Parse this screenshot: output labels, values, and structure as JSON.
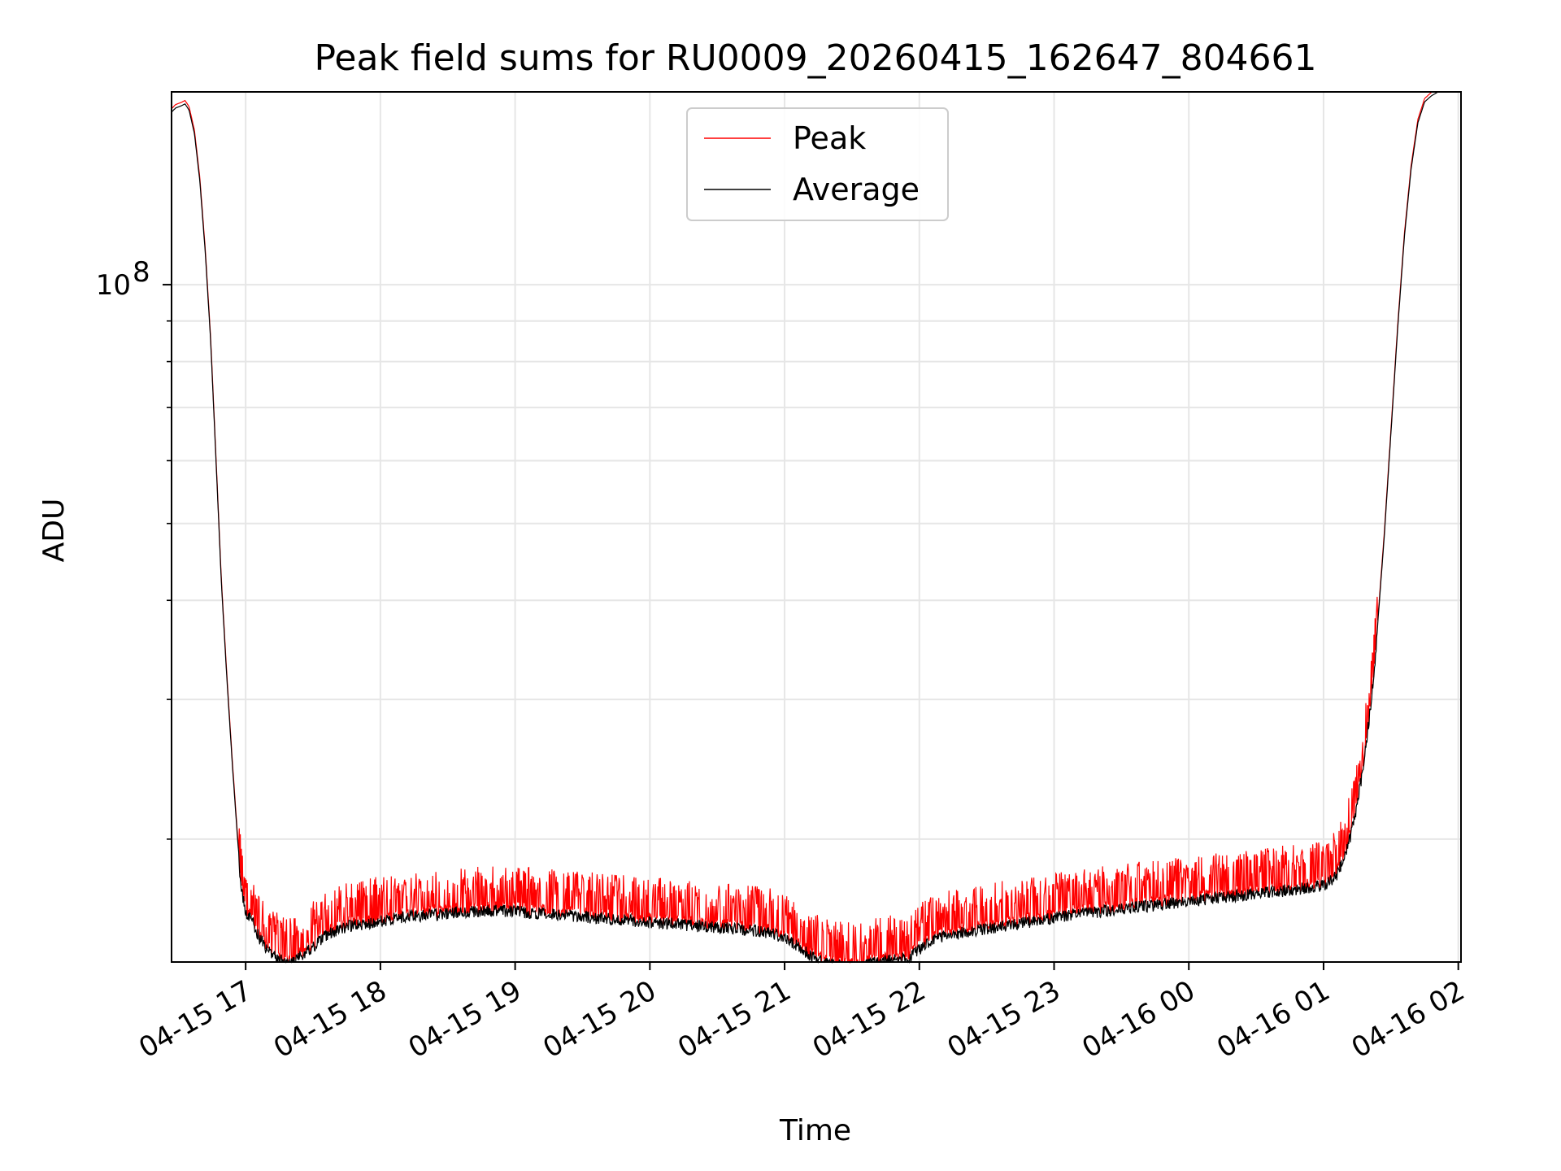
{
  "chart_data": {
    "type": "line",
    "title": "Peak field sums for RU0009_20260415_162647_804661",
    "xlabel": "Time",
    "ylabel": "ADU",
    "yscale": "log",
    "ylim": [
      14000000,
      175000000
    ],
    "xlim_hours": [
      16.45,
      26.02
    ],
    "x_ticks": [
      {
        "hour": 17,
        "label": "04-15 17"
      },
      {
        "hour": 18,
        "label": "04-15 18"
      },
      {
        "hour": 19,
        "label": "04-15 19"
      },
      {
        "hour": 20,
        "label": "04-15 20"
      },
      {
        "hour": 21,
        "label": "04-15 21"
      },
      {
        "hour": 22,
        "label": "04-15 22"
      },
      {
        "hour": 23,
        "label": "04-15 23"
      },
      {
        "hour": 24,
        "label": "04-16 00"
      },
      {
        "hour": 25,
        "label": "04-16 01"
      },
      {
        "hour": 26,
        "label": "04-16 02"
      }
    ],
    "y_major_tick": {
      "value": 100000000,
      "base": "10",
      "exponent": "8"
    },
    "y_minor_ticks": [
      20000000,
      30000000,
      40000000,
      50000000,
      60000000,
      70000000,
      80000000,
      90000000
    ],
    "grid": true,
    "legend_position": "top-center",
    "series": [
      {
        "name": "Peak",
        "color": "#ff0000",
        "baseline_of": "Average",
        "spike_factor_range": [
          1.04,
          1.12
        ]
      },
      {
        "name": "Average",
        "color": "#000000",
        "points": [
          [
            16.45,
            165000000
          ],
          [
            16.48,
            167000000
          ],
          [
            16.52,
            168000000
          ],
          [
            16.55,
            169000000
          ],
          [
            16.58,
            166000000
          ],
          [
            16.62,
            155000000
          ],
          [
            16.66,
            135000000
          ],
          [
            16.7,
            110000000
          ],
          [
            16.74,
            85000000
          ],
          [
            16.78,
            60000000
          ],
          [
            16.82,
            42000000
          ],
          [
            16.86,
            32000000
          ],
          [
            16.9,
            25000000
          ],
          [
            16.94,
            20000000
          ],
          [
            16.97,
            17500000
          ],
          [
            17.0,
            16500000
          ],
          [
            17.05,
            16000000
          ],
          [
            17.1,
            15300000
          ],
          [
            17.15,
            14900000
          ],
          [
            17.2,
            14600000
          ],
          [
            17.25,
            14350000
          ],
          [
            17.3,
            14250000
          ],
          [
            17.35,
            14300000
          ],
          [
            17.4,
            14500000
          ],
          [
            17.5,
            14900000
          ],
          [
            17.6,
            15400000
          ],
          [
            17.7,
            15700000
          ],
          [
            17.8,
            15850000
          ],
          [
            17.9,
            15950000
          ],
          [
            18.0,
            16050000
          ],
          [
            18.2,
            16250000
          ],
          [
            18.4,
            16350000
          ],
          [
            18.6,
            16450000
          ],
          [
            18.8,
            16550000
          ],
          [
            19.0,
            16500000
          ],
          [
            19.2,
            16400000
          ],
          [
            19.4,
            16300000
          ],
          [
            19.6,
            16200000
          ],
          [
            19.8,
            16100000
          ],
          [
            20.0,
            16000000
          ],
          [
            20.2,
            15900000
          ],
          [
            20.4,
            15800000
          ],
          [
            20.6,
            15700000
          ],
          [
            20.8,
            15600000
          ],
          [
            20.9,
            15500000
          ],
          [
            21.0,
            15300000
          ],
          [
            21.1,
            14900000
          ],
          [
            21.2,
            14500000
          ],
          [
            21.3,
            14200000
          ],
          [
            21.4,
            14100000
          ],
          [
            21.5,
            14050000
          ],
          [
            21.6,
            14100000
          ],
          [
            21.7,
            14250000
          ],
          [
            21.8,
            14350000
          ],
          [
            21.9,
            14400000
          ],
          [
            21.95,
            14500000
          ],
          [
            22.0,
            14800000
          ],
          [
            22.1,
            15200000
          ],
          [
            22.2,
            15400000
          ],
          [
            22.4,
            15600000
          ],
          [
            22.6,
            15800000
          ],
          [
            22.8,
            16000000
          ],
          [
            23.0,
            16200000
          ],
          [
            23.2,
            16400000
          ],
          [
            23.4,
            16550000
          ],
          [
            23.6,
            16700000
          ],
          [
            23.8,
            16850000
          ],
          [
            24.0,
            17000000
          ],
          [
            24.2,
            17150000
          ],
          [
            24.4,
            17300000
          ],
          [
            24.6,
            17450000
          ],
          [
            24.8,
            17600000
          ],
          [
            24.9,
            17700000
          ],
          [
            25.0,
            17800000
          ],
          [
            25.05,
            18000000
          ],
          [
            25.1,
            18400000
          ],
          [
            25.15,
            19200000
          ],
          [
            25.2,
            20500000
          ],
          [
            25.25,
            22500000
          ],
          [
            25.3,
            25500000
          ],
          [
            25.35,
            30000000
          ],
          [
            25.4,
            37000000
          ],
          [
            25.45,
            48000000
          ],
          [
            25.5,
            65000000
          ],
          [
            25.55,
            88000000
          ],
          [
            25.6,
            115000000
          ],
          [
            25.65,
            140000000
          ],
          [
            25.7,
            160000000
          ],
          [
            25.75,
            170000000
          ],
          [
            25.8,
            173000000
          ],
          [
            25.85,
            175000000
          ],
          [
            26.0,
            175000000
          ]
        ]
      }
    ]
  }
}
